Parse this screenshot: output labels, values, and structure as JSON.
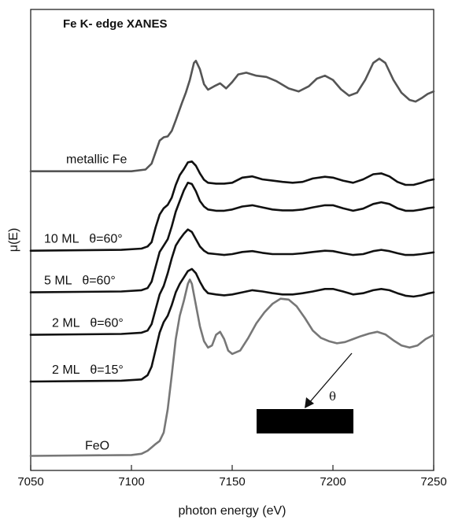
{
  "chart_data": {
    "type": "line",
    "title": "Fe K- edge XANES",
    "xlabel": "photon energy (eV)",
    "ylabel": "μ(E)",
    "xlim": [
      7050,
      7250
    ],
    "x_ticks": [
      7050,
      7100,
      7150,
      7200,
      7250
    ],
    "y_ticks": "none",
    "grid": false,
    "legend": "none",
    "y_units": "arbitrary, vertically offset",
    "series": [
      {
        "name": "metallic Fe",
        "color": "#555555",
        "baseline": 4.95,
        "points": [
          [
            7050,
            0
          ],
          [
            7100,
            0
          ],
          [
            7107,
            0.04
          ],
          [
            7110,
            0.18
          ],
          [
            7112,
            0.45
          ],
          [
            7114,
            0.72
          ],
          [
            7116,
            0.8
          ],
          [
            7118,
            0.82
          ],
          [
            7120,
            0.95
          ],
          [
            7122,
            1.2
          ],
          [
            7125,
            1.6
          ],
          [
            7127,
            1.85
          ],
          [
            7129,
            2.15
          ],
          [
            7131,
            2.55
          ],
          [
            7132,
            2.6
          ],
          [
            7134,
            2.4
          ],
          [
            7136,
            2.05
          ],
          [
            7138,
            1.92
          ],
          [
            7141,
            2.0
          ],
          [
            7144,
            2.07
          ],
          [
            7147,
            1.95
          ],
          [
            7150,
            2.1
          ],
          [
            7153,
            2.28
          ],
          [
            7157,
            2.32
          ],
          [
            7162,
            2.25
          ],
          [
            7167,
            2.22
          ],
          [
            7172,
            2.12
          ],
          [
            7178,
            1.95
          ],
          [
            7183,
            1.88
          ],
          [
            7188,
            2.0
          ],
          [
            7192,
            2.18
          ],
          [
            7196,
            2.25
          ],
          [
            7200,
            2.15
          ],
          [
            7204,
            1.93
          ],
          [
            7208,
            1.78
          ],
          [
            7212,
            1.85
          ],
          [
            7216,
            2.15
          ],
          [
            7220,
            2.55
          ],
          [
            7223,
            2.65
          ],
          [
            7226,
            2.55
          ],
          [
            7230,
            2.15
          ],
          [
            7234,
            1.85
          ],
          [
            7238,
            1.68
          ],
          [
            7241,
            1.64
          ],
          [
            7244,
            1.72
          ],
          [
            7247,
            1.82
          ],
          [
            7250,
            1.88
          ]
        ]
      },
      {
        "name": "10 ML   θ=60°",
        "color": "#111111",
        "baseline": 3.08,
        "points": [
          [
            7050,
            0
          ],
          [
            7095,
            0.02
          ],
          [
            7105,
            0.05
          ],
          [
            7108,
            0.1
          ],
          [
            7110,
            0.2
          ],
          [
            7112,
            0.55
          ],
          [
            7114,
            0.85
          ],
          [
            7116,
            1.0
          ],
          [
            7118,
            1.08
          ],
          [
            7120,
            1.25
          ],
          [
            7122,
            1.55
          ],
          [
            7124,
            1.78
          ],
          [
            7126,
            1.92
          ],
          [
            7128,
            2.08
          ],
          [
            7130,
            2.1
          ],
          [
            7132,
            2.0
          ],
          [
            7134,
            1.82
          ],
          [
            7136,
            1.67
          ],
          [
            7138,
            1.6
          ],
          [
            7142,
            1.58
          ],
          [
            7146,
            1.58
          ],
          [
            7150,
            1.6
          ],
          [
            7155,
            1.72
          ],
          [
            7160,
            1.75
          ],
          [
            7165,
            1.68
          ],
          [
            7170,
            1.65
          ],
          [
            7175,
            1.62
          ],
          [
            7180,
            1.6
          ],
          [
            7185,
            1.62
          ],
          [
            7190,
            1.7
          ],
          [
            7196,
            1.74
          ],
          [
            7200,
            1.72
          ],
          [
            7205,
            1.65
          ],
          [
            7210,
            1.6
          ],
          [
            7215,
            1.68
          ],
          [
            7220,
            1.8
          ],
          [
            7224,
            1.82
          ],
          [
            7228,
            1.75
          ],
          [
            7232,
            1.62
          ],
          [
            7236,
            1.55
          ],
          [
            7240,
            1.55
          ],
          [
            7244,
            1.6
          ],
          [
            7247,
            1.65
          ],
          [
            7250,
            1.68
          ]
        ]
      },
      {
        "name": "5 ML   θ=60°",
        "color": "#111111",
        "baseline": 2.1,
        "points": [
          [
            7050,
            0
          ],
          [
            7095,
            0.02
          ],
          [
            7105,
            0.05
          ],
          [
            7108,
            0.1
          ],
          [
            7110,
            0.25
          ],
          [
            7112,
            0.6
          ],
          [
            7114,
            0.95
          ],
          [
            7116,
            1.1
          ],
          [
            7118,
            1.25
          ],
          [
            7120,
            1.55
          ],
          [
            7122,
            1.9
          ],
          [
            7124,
            2.15
          ],
          [
            7126,
            2.4
          ],
          [
            7128,
            2.58
          ],
          [
            7130,
            2.55
          ],
          [
            7132,
            2.38
          ],
          [
            7134,
            2.15
          ],
          [
            7136,
            2.02
          ],
          [
            7138,
            1.95
          ],
          [
            7142,
            1.92
          ],
          [
            7146,
            1.92
          ],
          [
            7150,
            1.95
          ],
          [
            7155,
            2.02
          ],
          [
            7160,
            2.05
          ],
          [
            7165,
            2.0
          ],
          [
            7170,
            1.95
          ],
          [
            7175,
            1.93
          ],
          [
            7180,
            1.93
          ],
          [
            7185,
            1.95
          ],
          [
            7190,
            2.0
          ],
          [
            7196,
            2.05
          ],
          [
            7200,
            2.05
          ],
          [
            7205,
            1.98
          ],
          [
            7210,
            1.92
          ],
          [
            7215,
            1.97
          ],
          [
            7220,
            2.08
          ],
          [
            7224,
            2.12
          ],
          [
            7228,
            2.08
          ],
          [
            7232,
            1.98
          ],
          [
            7236,
            1.92
          ],
          [
            7240,
            1.92
          ],
          [
            7244,
            1.95
          ],
          [
            7247,
            1.98
          ],
          [
            7250,
            2.0
          ]
        ]
      },
      {
        "name": "2 ML   θ=60°",
        "color": "#111111",
        "baseline": 1.1,
        "points": [
          [
            7050,
            0
          ],
          [
            7095,
            0.02
          ],
          [
            7105,
            0.05
          ],
          [
            7108,
            0.1
          ],
          [
            7110,
            0.25
          ],
          [
            7112,
            0.6
          ],
          [
            7114,
            0.95
          ],
          [
            7116,
            1.15
          ],
          [
            7118,
            1.45
          ],
          [
            7120,
            1.8
          ],
          [
            7122,
            2.1
          ],
          [
            7124,
            2.25
          ],
          [
            7126,
            2.38
          ],
          [
            7128,
            2.48
          ],
          [
            7130,
            2.42
          ],
          [
            7132,
            2.25
          ],
          [
            7134,
            2.08
          ],
          [
            7136,
            1.98
          ],
          [
            7138,
            1.92
          ],
          [
            7142,
            1.9
          ],
          [
            7146,
            1.88
          ],
          [
            7150,
            1.9
          ],
          [
            7155,
            1.95
          ],
          [
            7160,
            1.97
          ],
          [
            7165,
            1.93
          ],
          [
            7170,
            1.9
          ],
          [
            7175,
            1.9
          ],
          [
            7180,
            1.9
          ],
          [
            7185,
            1.92
          ],
          [
            7190,
            1.95
          ],
          [
            7196,
            1.98
          ],
          [
            7200,
            1.97
          ],
          [
            7205,
            1.92
          ],
          [
            7210,
            1.88
          ],
          [
            7215,
            1.9
          ],
          [
            7220,
            1.97
          ],
          [
            7224,
            2.0
          ],
          [
            7228,
            1.97
          ],
          [
            7232,
            1.92
          ],
          [
            7236,
            1.88
          ],
          [
            7240,
            1.88
          ],
          [
            7244,
            1.9
          ],
          [
            7247,
            1.92
          ],
          [
            7250,
            1.94
          ]
        ]
      },
      {
        "name": "2 ML   θ=15°",
        "color": "#111111",
        "baseline": 0.0,
        "points": [
          [
            7050,
            0
          ],
          [
            7095,
            0.02
          ],
          [
            7105,
            0.05
          ],
          [
            7108,
            0.15
          ],
          [
            7110,
            0.35
          ],
          [
            7112,
            0.75
          ],
          [
            7114,
            1.15
          ],
          [
            7116,
            1.4
          ],
          [
            7118,
            1.55
          ],
          [
            7120,
            1.8
          ],
          [
            7122,
            2.1
          ],
          [
            7124,
            2.3
          ],
          [
            7126,
            2.45
          ],
          [
            7128,
            2.6
          ],
          [
            7130,
            2.65
          ],
          [
            7132,
            2.55
          ],
          [
            7134,
            2.35
          ],
          [
            7136,
            2.18
          ],
          [
            7138,
            2.08
          ],
          [
            7142,
            2.05
          ],
          [
            7146,
            2.03
          ],
          [
            7150,
            2.05
          ],
          [
            7155,
            2.1
          ],
          [
            7160,
            2.15
          ],
          [
            7165,
            2.12
          ],
          [
            7170,
            2.08
          ],
          [
            7175,
            2.05
          ],
          [
            7180,
            2.05
          ],
          [
            7185,
            2.08
          ],
          [
            7190,
            2.12
          ],
          [
            7196,
            2.18
          ],
          [
            7200,
            2.18
          ],
          [
            7205,
            2.12
          ],
          [
            7210,
            2.05
          ],
          [
            7215,
            2.08
          ],
          [
            7220,
            2.15
          ],
          [
            7224,
            2.18
          ],
          [
            7228,
            2.15
          ],
          [
            7232,
            2.08
          ],
          [
            7236,
            2.02
          ],
          [
            7240,
            2.0
          ],
          [
            7244,
            2.03
          ],
          [
            7247,
            2.07
          ],
          [
            7250,
            2.1
          ]
        ]
      },
      {
        "name": "FeO",
        "color": "#777777",
        "baseline": -1.75,
        "points": [
          [
            7050,
            0
          ],
          [
            7100,
            0.02
          ],
          [
            7105,
            0.05
          ],
          [
            7108,
            0.12
          ],
          [
            7110,
            0.2
          ],
          [
            7112,
            0.28
          ],
          [
            7114,
            0.35
          ],
          [
            7116,
            0.55
          ],
          [
            7118,
            1.1
          ],
          [
            7120,
            1.9
          ],
          [
            7122,
            2.75
          ],
          [
            7124,
            3.3
          ],
          [
            7126,
            3.65
          ],
          [
            7128,
            4.05
          ],
          [
            7129,
            4.15
          ],
          [
            7130,
            4.05
          ],
          [
            7132,
            3.55
          ],
          [
            7134,
            3.05
          ],
          [
            7136,
            2.7
          ],
          [
            7138,
            2.55
          ],
          [
            7140,
            2.6
          ],
          [
            7142,
            2.85
          ],
          [
            7144,
            2.92
          ],
          [
            7146,
            2.75
          ],
          [
            7148,
            2.48
          ],
          [
            7150,
            2.4
          ],
          [
            7154,
            2.48
          ],
          [
            7158,
            2.78
          ],
          [
            7162,
            3.12
          ],
          [
            7166,
            3.38
          ],
          [
            7170,
            3.58
          ],
          [
            7174,
            3.7
          ],
          [
            7178,
            3.68
          ],
          [
            7182,
            3.52
          ],
          [
            7186,
            3.25
          ],
          [
            7190,
            2.95
          ],
          [
            7194,
            2.78
          ],
          [
            7198,
            2.7
          ],
          [
            7202,
            2.65
          ],
          [
            7206,
            2.68
          ],
          [
            7210,
            2.75
          ],
          [
            7214,
            2.82
          ],
          [
            7218,
            2.88
          ],
          [
            7222,
            2.92
          ],
          [
            7226,
            2.86
          ],
          [
            7230,
            2.72
          ],
          [
            7234,
            2.6
          ],
          [
            7238,
            2.55
          ],
          [
            7242,
            2.6
          ],
          [
            7246,
            2.75
          ],
          [
            7250,
            2.85
          ]
        ]
      }
    ],
    "inset": {
      "symbol": "θ",
      "description_shape": "arrow-onto-slab"
    }
  }
}
